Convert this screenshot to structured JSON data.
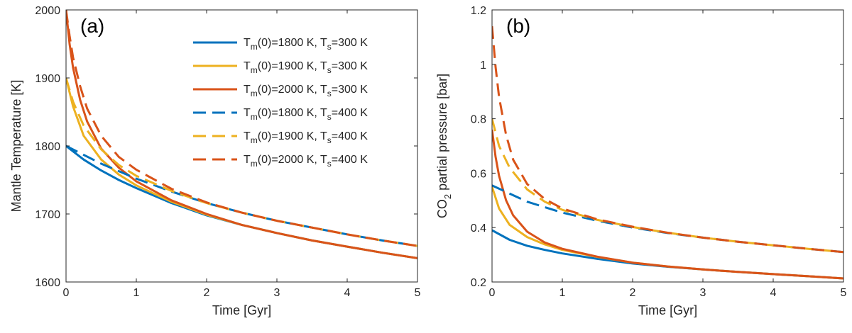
{
  "colors": {
    "blue": "#0072BD",
    "yellow": "#EDB120",
    "red": "#D95319"
  },
  "chart_data": [
    {
      "type": "line",
      "panel_label": "(a)",
      "xlabel": "Time [Gyr]",
      "ylabel": "Mantle Temperature [K]",
      "xlim": [
        0,
        5
      ],
      "ylim": [
        1600,
        2000
      ],
      "xticks": [
        "0",
        "1",
        "2",
        "3",
        "4",
        "5"
      ],
      "yticks": [
        "1600",
        "1700",
        "1800",
        "1900",
        "2000"
      ],
      "grid": false,
      "legend_position": "top-right",
      "series": [
        {
          "name": "Tm(0)=1800 K, Ts=300 K",
          "legend": {
            "pre": "T",
            "sub1": "m",
            "mid": "(0)=1800 K, T",
            "sub2": "s",
            "post": "=300 K"
          },
          "color": "#0072BD",
          "dash": "solid",
          "x": [
            0,
            0.25,
            0.5,
            0.75,
            1,
            1.5,
            2,
            2.5,
            3,
            3.5,
            4,
            4.5,
            5
          ],
          "y": [
            1800,
            1780,
            1764,
            1750,
            1738,
            1716,
            1698,
            1684,
            1672,
            1661,
            1652,
            1643,
            1635
          ]
        },
        {
          "name": "Tm(0)=1900 K, Ts=300 K",
          "legend": {
            "pre": "T",
            "sub1": "m",
            "mid": "(0)=1900 K, T",
            "sub2": "s",
            "post": "=300 K"
          },
          "color": "#EDB120",
          "dash": "solid",
          "x": [
            0,
            0.1,
            0.25,
            0.5,
            0.75,
            1,
            1.5,
            2,
            2.5,
            3,
            3.5,
            4,
            4.5,
            5
          ],
          "y": [
            1900,
            1858,
            1815,
            1780,
            1758,
            1742,
            1718,
            1699,
            1684,
            1672,
            1661,
            1652,
            1643,
            1635
          ]
        },
        {
          "name": "Tm(0)=2000 K, Ts=300 K",
          "legend": {
            "pre": "T",
            "sub1": "m",
            "mid": "(0)=2000 K, T",
            "sub2": "s",
            "post": "=300 K"
          },
          "color": "#D95319",
          "dash": "solid",
          "x": [
            0,
            0.05,
            0.1,
            0.2,
            0.3,
            0.5,
            0.75,
            1,
            1.5,
            2,
            2.5,
            3,
            3.5,
            4,
            4.5,
            5
          ],
          "y": [
            2000,
            1950,
            1915,
            1868,
            1836,
            1796,
            1768,
            1748,
            1720,
            1700,
            1684,
            1672,
            1661,
            1652,
            1643,
            1635
          ]
        },
        {
          "name": "Tm(0)=1800 K, Ts=400 K",
          "legend": {
            "pre": "T",
            "sub1": "m",
            "mid": "(0)=1800 K, T",
            "sub2": "s",
            "post": "=400 K"
          },
          "color": "#0072BD",
          "dash": "dashed",
          "x": [
            0,
            0.5,
            1,
            1.5,
            2,
            2.5,
            3,
            3.5,
            4,
            4.5,
            5
          ],
          "y": [
            1800,
            1774,
            1752,
            1733,
            1716,
            1702,
            1690,
            1680,
            1670,
            1661,
            1653
          ]
        },
        {
          "name": "Tm(0)=1900 K, Ts=400 K",
          "legend": {
            "pre": "T",
            "sub1": "m",
            "mid": "(0)=1900 K, T",
            "sub2": "s",
            "post": "=400 K"
          },
          "color": "#EDB120",
          "dash": "dashed",
          "x": [
            0,
            0.1,
            0.25,
            0.5,
            0.75,
            1,
            1.5,
            2,
            2.5,
            3,
            3.5,
            4,
            4.5,
            5
          ],
          "y": [
            1900,
            1865,
            1830,
            1795,
            1772,
            1756,
            1734,
            1716,
            1702,
            1690,
            1680,
            1670,
            1661,
            1653
          ]
        },
        {
          "name": "Tm(0)=2000 K, Ts=400 K",
          "legend": {
            "pre": "T",
            "sub1": "m",
            "mid": "(0)=2000 K, T",
            "sub2": "s",
            "post": "=400 K"
          },
          "color": "#D95319",
          "dash": "dashed",
          "x": [
            0,
            0.05,
            0.1,
            0.2,
            0.3,
            0.5,
            0.75,
            1,
            1.5,
            2,
            2.5,
            3,
            3.5,
            4,
            4.5,
            5
          ],
          "y": [
            2000,
            1962,
            1930,
            1888,
            1855,
            1815,
            1784,
            1765,
            1737,
            1717,
            1702,
            1690,
            1680,
            1670,
            1661,
            1653
          ]
        }
      ]
    },
    {
      "type": "line",
      "panel_label": "(b)",
      "xlabel": "Time [Gyr]",
      "ylabel": "CO2 partial pressure [bar]",
      "ylabel_parts": {
        "pre": "CO",
        "sub": "2",
        "post": " partial pressure [bar]"
      },
      "xlim": [
        0,
        5
      ],
      "ylim": [
        0.2,
        1.2
      ],
      "xticks": [
        "0",
        "1",
        "2",
        "3",
        "4",
        "5"
      ],
      "yticks": [
        "0.2",
        "0.4",
        "0.6",
        "0.8",
        "1",
        "1.2"
      ],
      "grid": false,
      "series": [
        {
          "name": "Tm(0)=1800 K, Ts=300 K",
          "color": "#0072BD",
          "dash": "solid",
          "x": [
            0,
            0.25,
            0.5,
            0.75,
            1,
            1.5,
            2,
            2.5,
            3,
            3.5,
            4,
            4.5,
            5
          ],
          "y": [
            0.39,
            0.355,
            0.333,
            0.318,
            0.305,
            0.285,
            0.268,
            0.256,
            0.246,
            0.237,
            0.229,
            0.221,
            0.213
          ]
        },
        {
          "name": "Tm(0)=1900 K, Ts=300 K",
          "color": "#EDB120",
          "dash": "solid",
          "x": [
            0,
            0.1,
            0.25,
            0.5,
            0.75,
            1,
            1.5,
            2,
            2.5,
            3,
            3.5,
            4,
            4.5,
            5
          ],
          "y": [
            0.55,
            0.47,
            0.41,
            0.365,
            0.338,
            0.318,
            0.292,
            0.271,
            0.257,
            0.246,
            0.237,
            0.229,
            0.221,
            0.213
          ]
        },
        {
          "name": "Tm(0)=2000 K, Ts=300 K",
          "color": "#D95319",
          "dash": "solid",
          "x": [
            0,
            0.05,
            0.1,
            0.2,
            0.3,
            0.5,
            0.75,
            1,
            1.5,
            2,
            2.5,
            3,
            3.5,
            4,
            4.5,
            5
          ],
          "y": [
            0.76,
            0.66,
            0.59,
            0.5,
            0.445,
            0.385,
            0.345,
            0.322,
            0.293,
            0.271,
            0.257,
            0.246,
            0.237,
            0.229,
            0.221,
            0.213
          ]
        },
        {
          "name": "Tm(0)=1800 K, Ts=400 K",
          "color": "#0072BD",
          "dash": "dashed",
          "x": [
            0,
            0.5,
            1,
            1.5,
            2,
            2.5,
            3,
            3.5,
            4,
            4.5,
            5
          ],
          "y": [
            0.555,
            0.495,
            0.455,
            0.425,
            0.4,
            0.38,
            0.363,
            0.348,
            0.335,
            0.322,
            0.31
          ]
        },
        {
          "name": "Tm(0)=1900 K, Ts=400 K",
          "color": "#EDB120",
          "dash": "dashed",
          "x": [
            0,
            0.1,
            0.25,
            0.5,
            0.75,
            1,
            1.5,
            2,
            2.5,
            3,
            3.5,
            4,
            4.5,
            5
          ],
          "y": [
            0.8,
            0.7,
            0.62,
            0.54,
            0.495,
            0.465,
            0.428,
            0.402,
            0.381,
            0.363,
            0.348,
            0.335,
            0.322,
            0.31
          ]
        },
        {
          "name": "Tm(0)=2000 K, Ts=400 K",
          "color": "#D95319",
          "dash": "dashed",
          "x": [
            0,
            0.05,
            0.1,
            0.2,
            0.3,
            0.5,
            0.75,
            1,
            1.5,
            2,
            2.5,
            3,
            3.5,
            4,
            4.5,
            5
          ],
          "y": [
            1.14,
            0.99,
            0.88,
            0.74,
            0.65,
            0.56,
            0.505,
            0.47,
            0.43,
            0.403,
            0.381,
            0.363,
            0.348,
            0.335,
            0.322,
            0.31
          ]
        }
      ]
    }
  ]
}
